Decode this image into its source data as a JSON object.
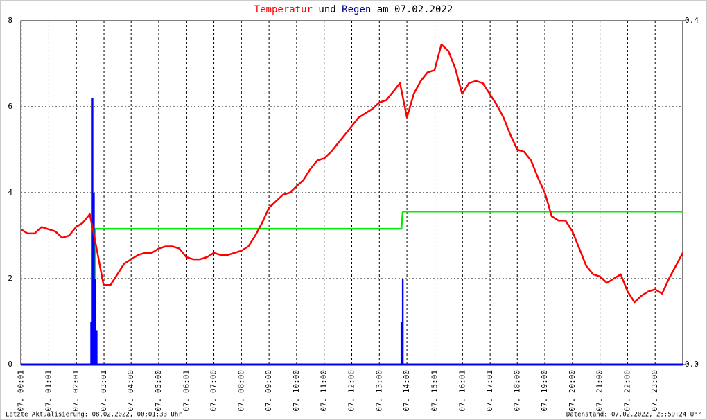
{
  "chart_data": {
    "type": "line",
    "title": [
      "Temperatur",
      "und",
      "Regen",
      "am 07.02.2022"
    ],
    "title_colors": [
      "#ff0000",
      "#000000",
      "#000080",
      "#000000"
    ],
    "footer_left": "Letzte Aktualisierung: 08.02.2022, 00:01:33 Uhr",
    "footer_right": "Datenstand: 07.02.2022, 23:59:24 Uhr",
    "xlim": [
      0,
      24
    ],
    "xticks": [
      {
        "value": 0.0167,
        "label": "07. 00:01"
      },
      {
        "value": 1.0167,
        "label": "07. 01:01"
      },
      {
        "value": 2.0167,
        "label": "07. 02:01"
      },
      {
        "value": 3.0167,
        "label": "07. 03:01"
      },
      {
        "value": 4,
        "label": "07. 04:00"
      },
      {
        "value": 5,
        "label": "07. 05:00"
      },
      {
        "value": 6.0167,
        "label": "07. 06:01"
      },
      {
        "value": 7,
        "label": "07. 07:00"
      },
      {
        "value": 8,
        "label": "07. 08:00"
      },
      {
        "value": 9,
        "label": "07. 09:00"
      },
      {
        "value": 10,
        "label": "07. 10:00"
      },
      {
        "value": 11,
        "label": "07. 11:00"
      },
      {
        "value": 12,
        "label": "07. 12:00"
      },
      {
        "value": 13,
        "label": "07. 13:00"
      },
      {
        "value": 14,
        "label": "07. 14:00"
      },
      {
        "value": 15.0167,
        "label": "07. 15:01"
      },
      {
        "value": 16.0167,
        "label": "07. 16:01"
      },
      {
        "value": 17.0167,
        "label": "07. 17:01"
      },
      {
        "value": 18,
        "label": "07. 18:00"
      },
      {
        "value": 19,
        "label": "07. 19:00"
      },
      {
        "value": 20,
        "label": "07. 20:00"
      },
      {
        "value": 21,
        "label": "07. 21:00"
      },
      {
        "value": 22,
        "label": "07. 22:00"
      },
      {
        "value": 23,
        "label": "07. 23:00"
      }
    ],
    "ylim": [
      0,
      8
    ],
    "yticks": [
      0,
      2,
      4,
      6,
      8
    ],
    "y2lim": [
      0,
      0.4
    ],
    "y2ticks": [
      {
        "value": 0,
        "label": "0.0"
      },
      {
        "value": 0.4,
        "label": "0.4"
      }
    ],
    "grid": true,
    "series": [
      {
        "type": "line",
        "color": "#ff0000",
        "x": [
          0,
          0.25,
          0.5,
          0.75,
          1,
          1.25,
          1.5,
          1.75,
          2,
          2.25,
          2.5,
          2.75,
          3,
          3.25,
          3.5,
          3.75,
          4,
          4.25,
          4.5,
          4.75,
          5,
          5.25,
          5.5,
          5.75,
          6,
          6.25,
          6.5,
          6.75,
          7,
          7.25,
          7.5,
          7.75,
          8,
          8.25,
          8.5,
          8.75,
          9,
          9.25,
          9.5,
          9.75,
          10,
          10.25,
          10.5,
          10.75,
          11,
          11.25,
          11.5,
          11.75,
          12,
          12.25,
          12.5,
          12.75,
          13,
          13.25,
          13.5,
          13.75,
          14,
          14.25,
          14.5,
          14.75,
          15,
          15.25,
          15.5,
          15.75,
          16,
          16.25,
          16.5,
          16.75,
          17,
          17.25,
          17.5,
          17.75,
          18,
          18.25,
          18.5,
          18.75,
          19,
          19.25,
          19.5,
          19.75,
          20,
          20.25,
          20.5,
          20.75,
          21,
          21.25,
          21.5,
          21.75,
          22,
          22.25,
          22.5,
          22.75,
          23,
          23.25,
          23.5,
          23.75,
          24
        ],
        "values": [
          3.15,
          3.05,
          3.05,
          3.2,
          3.15,
          3.1,
          2.95,
          3.0,
          3.2,
          3.3,
          3.5,
          2.7,
          1.85,
          1.85,
          2.1,
          2.35,
          2.45,
          2.55,
          2.6,
          2.6,
          2.7,
          2.75,
          2.75,
          2.7,
          2.5,
          2.45,
          2.45,
          2.5,
          2.6,
          2.55,
          2.55,
          2.6,
          2.65,
          2.75,
          3.0,
          3.3,
          3.65,
          3.8,
          3.95,
          4.0,
          4.15,
          4.3,
          4.55,
          4.75,
          4.8,
          4.95,
          5.15,
          5.35,
          5.55,
          5.75,
          5.85,
          5.95,
          6.1,
          6.15,
          6.35,
          6.55,
          5.75,
          6.3,
          6.6,
          6.8,
          6.85,
          7.45,
          7.3,
          6.9,
          6.3,
          6.55,
          6.6,
          6.55,
          6.3,
          6.05,
          5.75,
          5.35,
          5.0,
          4.95,
          4.75,
          4.35,
          4.0,
          3.45,
          3.35,
          3.35,
          3.1,
          2.7,
          2.3,
          2.1,
          2.05,
          1.9,
          2.0,
          2.1,
          1.7,
          1.45,
          1.6,
          1.7,
          1.75,
          1.65,
          2.0,
          2.3,
          2.6
        ]
      },
      {
        "type": "line",
        "color": "#00ee00",
        "axis": "y2",
        "x": [
          0,
          2.65,
          2.7,
          13.8,
          13.85,
          24
        ],
        "values": [
          0,
          0,
          0.158,
          0.158,
          0.178,
          0.178
        ]
      },
      {
        "type": "bar",
        "color": "#0000ff",
        "axis": "y2",
        "x": [
          2.55,
          2.6,
          2.65,
          2.7,
          2.75,
          13.8,
          13.85
        ],
        "values": [
          0.05,
          0.31,
          0.2,
          0.1,
          0.04,
          0.05,
          0.1
        ]
      }
    ]
  }
}
